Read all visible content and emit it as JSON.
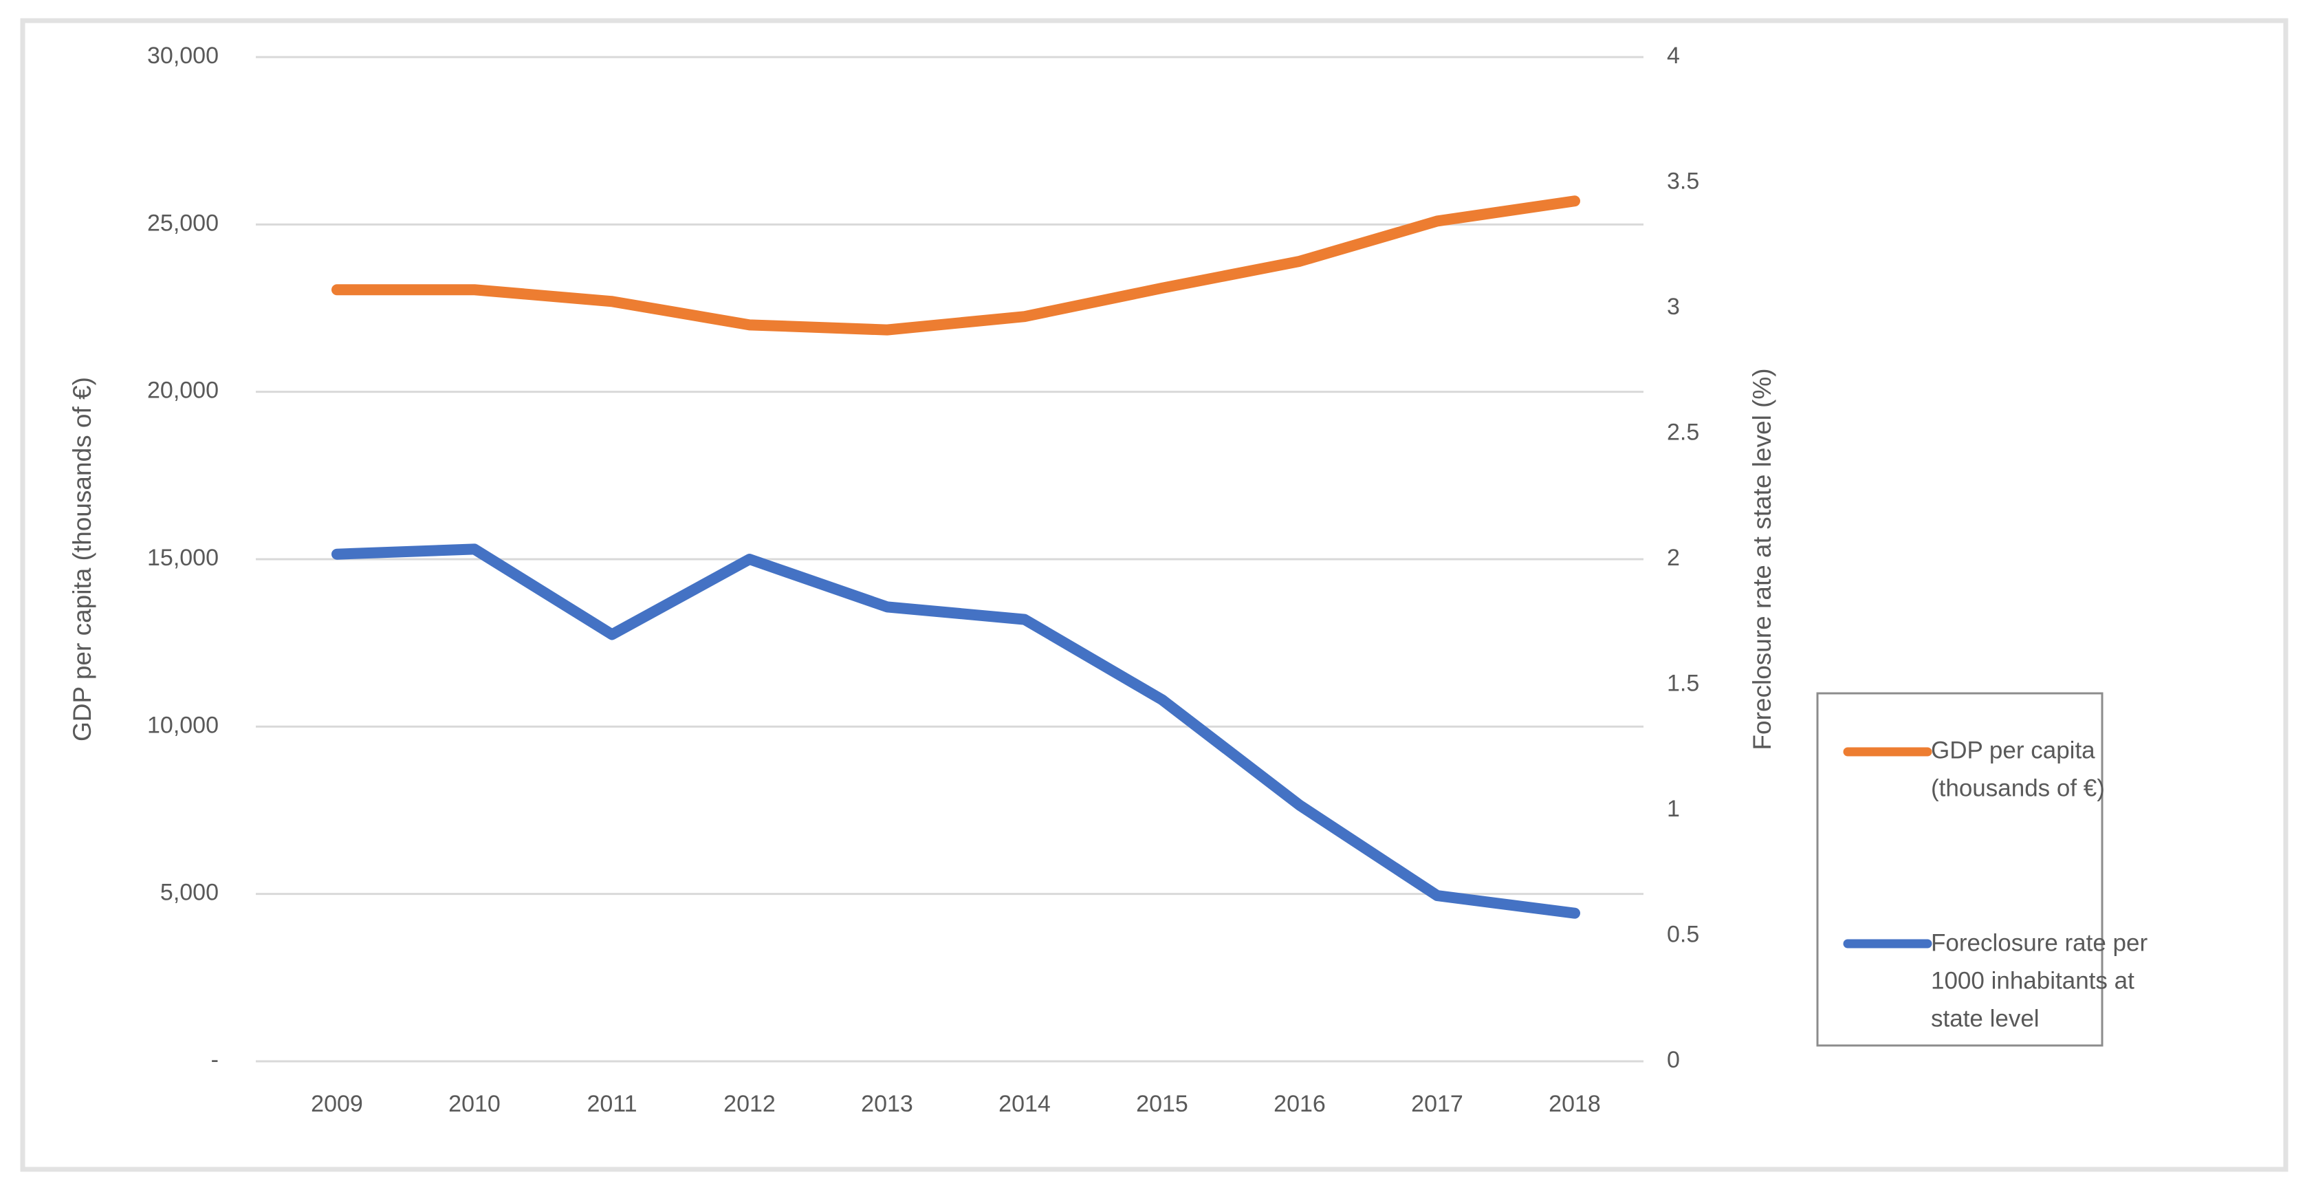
{
  "chart_data": {
    "type": "line",
    "title": "",
    "categories": [
      "2009",
      "2010",
      "2011",
      "2012",
      "2013",
      "2014",
      "2015",
      "2016",
      "2017",
      "2018"
    ],
    "series": [
      {
        "name": "GDP per capita (thousands of €)",
        "axis": "left",
        "color": "#ED7D31",
        "values": [
          23050,
          23050,
          22700,
          22000,
          21850,
          22250,
          23100,
          23900,
          25100,
          25700
        ]
      },
      {
        "name": "Foreclosure rate per 1000 inhabitants at state level",
        "axis": "right",
        "color": "#4472C4",
        "values": [
          2.02,
          2.04,
          1.7,
          2.0,
          1.81,
          1.76,
          1.44,
          1.02,
          0.66,
          0.59
        ]
      }
    ],
    "left_axis": {
      "title": "GDP per capita (thousands of €)",
      "min": 0,
      "max": 30000,
      "tick_values": [
        0,
        5000,
        10000,
        15000,
        20000,
        25000,
        30000
      ],
      "tick_labels": [
        "-",
        "5,000",
        "10,000",
        "15,000",
        "20,000",
        "25,000",
        "30,000"
      ]
    },
    "right_axis": {
      "title": "Foreclosure rate at state level (%)",
      "min": 0,
      "max": 4,
      "tick_values": [
        0,
        0.5,
        1,
        1.5,
        2,
        2.5,
        3,
        3.5,
        4
      ],
      "tick_labels": [
        "0",
        "0.5",
        "1",
        "1.5",
        "2",
        "2.5",
        "3",
        "3.5",
        "4"
      ]
    },
    "grid": true,
    "legend_position": "right"
  },
  "legend": {
    "items": [
      {
        "color": "#ED7D31",
        "lines": [
          "GDP per capita",
          "(thousands of €)"
        ]
      },
      {
        "color": "#4472C4",
        "lines": [
          "Foreclosure rate per",
          "1000 inhabitants at",
          "state level"
        ]
      }
    ]
  },
  "colors": {
    "gridline": "#D9D9D9",
    "chart_border": "#E2E2E2",
    "legend_border": "#8C8C8C",
    "text": "#595959",
    "background": "#FFFFFF"
  }
}
